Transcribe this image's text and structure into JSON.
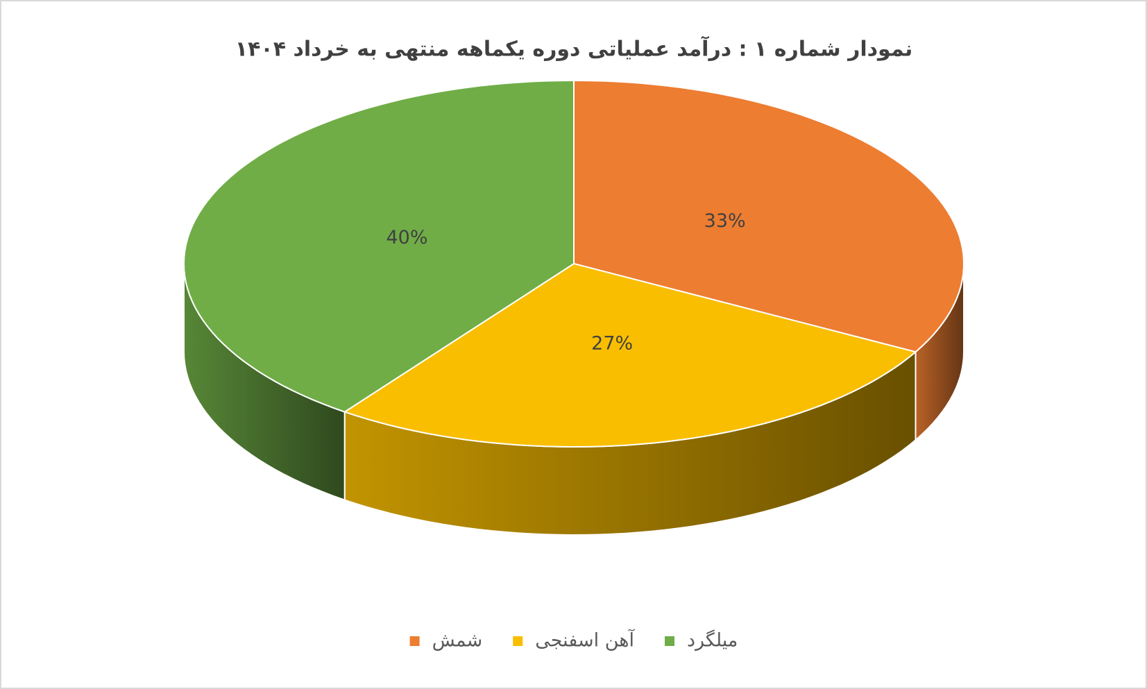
{
  "chart_data": {
    "type": "pie3d",
    "title": "نمودار شماره ۱ : درآمد عملیاتی دوره یکماهه منتهی به خرداد ۱۴۰۴",
    "categories": [
      "شمش",
      "آهن اسفنجی",
      "میلگرد"
    ],
    "values": [
      33,
      27,
      40
    ],
    "value_labels": [
      "33%",
      "27%",
      "40%"
    ],
    "colors": [
      "#ED7D31",
      "#F9BE00",
      "#70AD47"
    ],
    "legend": "bottom"
  }
}
